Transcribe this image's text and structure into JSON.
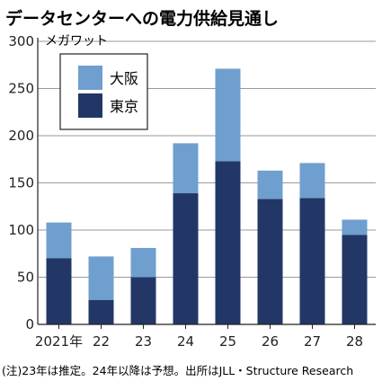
{
  "title": "データセンターへの電力供給見通し",
  "unit": "メガワット",
  "note": "(注)23年は推定。24年以降は予想。出所はJLL・Structure Research",
  "colors": {
    "osaka": "#6f9fcf",
    "tokyo": "#223766",
    "grid": "#9a9a9a",
    "axis": "#222222"
  },
  "chart_data": {
    "type": "bar",
    "stacked": true,
    "categories": [
      "2021年",
      "22",
      "23",
      "24",
      "25",
      "26",
      "27",
      "28"
    ],
    "series": [
      {
        "name": "東京",
        "values": [
          70,
          26,
          50,
          139,
          173,
          133,
          134,
          95
        ]
      },
      {
        "name": "大阪",
        "values": [
          38,
          46,
          31,
          53,
          98,
          30,
          37,
          16
        ]
      }
    ],
    "yticks": [
      0,
      50,
      100,
      150,
      200,
      250,
      300
    ],
    "ylim": [
      0,
      300
    ],
    "ylabel": "メガワット",
    "grid": true,
    "legend_position": "top-left"
  }
}
